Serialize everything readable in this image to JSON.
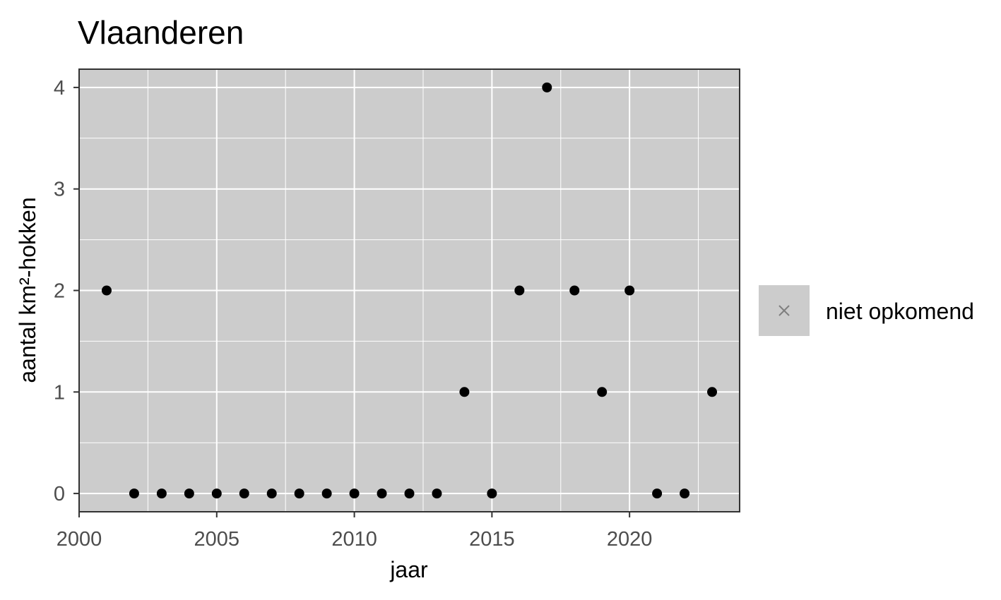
{
  "chart_data": {
    "type": "scatter",
    "title": "Vlaanderen",
    "xlabel": "jaar",
    "ylabel": "aantal km²-hokken",
    "xlim": [
      2000,
      2024
    ],
    "ylim": [
      -0.18,
      4.18
    ],
    "x_ticks": [
      2000,
      2005,
      2010,
      2015,
      2020
    ],
    "x_tick_labels": [
      "2000",
      "2005",
      "2010",
      "2015",
      "2020"
    ],
    "y_ticks": [
      0,
      1,
      2,
      3,
      4
    ],
    "y_tick_labels": [
      "0",
      "1",
      "2",
      "3",
      "4"
    ],
    "grid": true,
    "panel_background": "#cccccc",
    "point_color": "#000000",
    "legend": {
      "position": "right",
      "entries": [
        {
          "label": "niet opkomend",
          "symbol": "cross",
          "symbol_color": "#7f7f7f"
        }
      ]
    },
    "x": [
      2001,
      2002,
      2003,
      2004,
      2005,
      2006,
      2007,
      2008,
      2009,
      2010,
      2011,
      2012,
      2013,
      2014,
      2015,
      2016,
      2017,
      2018,
      2019,
      2020,
      2021,
      2022,
      2023
    ],
    "y": [
      2,
      0,
      0,
      0,
      0,
      0,
      0,
      0,
      0,
      0,
      0,
      0,
      0,
      1,
      0,
      2,
      4,
      2,
      1,
      2,
      0,
      0,
      1
    ]
  }
}
